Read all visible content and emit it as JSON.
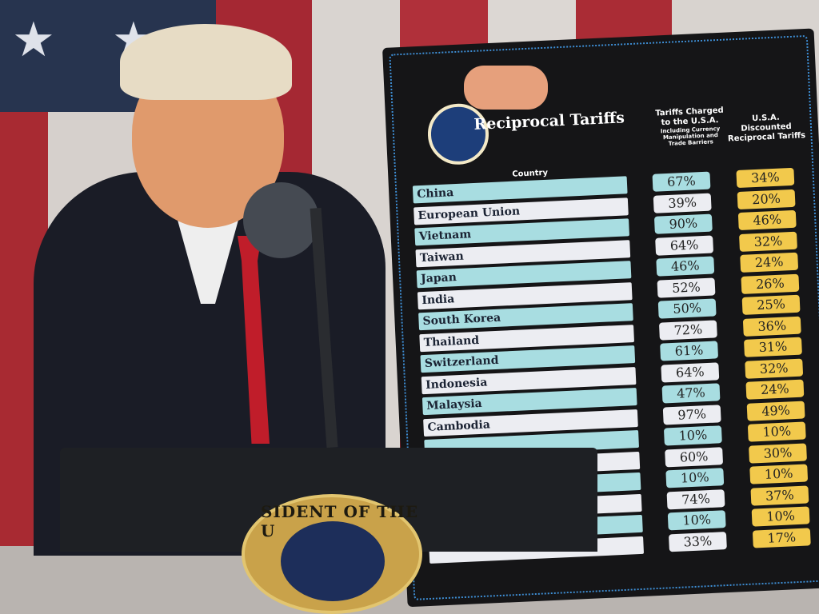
{
  "board": {
    "title": "Reciprocal Tariffs",
    "seal_text": "SEAL OF THE PRESIDENT OF THE UNITED STATES",
    "column_country": "Country",
    "column_charged": "Tariffs Charged to the U.S.A.",
    "column_charged_note": "Including Currency Manipulation and Trade Barriers",
    "column_discounted": "U.S.A. Discounted Reciprocal Tariffs",
    "colors": {
      "board": "#151517",
      "blue_row": "#a8dde1",
      "white_row": "#ecedf2",
      "discount": "#f2c94c",
      "border": "#3e8fd6"
    },
    "rows": [
      {
        "country": "China",
        "charged": "67%",
        "discounted": "34%"
      },
      {
        "country": "European Union",
        "charged": "39%",
        "discounted": "20%"
      },
      {
        "country": "Vietnam",
        "charged": "90%",
        "discounted": "46%"
      },
      {
        "country": "Taiwan",
        "charged": "64%",
        "discounted": "32%"
      },
      {
        "country": "Japan",
        "charged": "46%",
        "discounted": "24%"
      },
      {
        "country": "India",
        "charged": "52%",
        "discounted": "26%"
      },
      {
        "country": "South Korea",
        "charged": "50%",
        "discounted": "25%"
      },
      {
        "country": "Thailand",
        "charged": "72%",
        "discounted": "36%"
      },
      {
        "country": "Switzerland",
        "charged": "61%",
        "discounted": "31%"
      },
      {
        "country": "Indonesia",
        "charged": "64%",
        "discounted": "32%"
      },
      {
        "country": "Malaysia",
        "charged": "47%",
        "discounted": "24%"
      },
      {
        "country": "Cambodia",
        "charged": "97%",
        "discounted": "49%"
      },
      {
        "country": "",
        "charged": "10%",
        "discounted": "10%"
      },
      {
        "country": "",
        "charged": "60%",
        "discounted": "30%"
      },
      {
        "country": "",
        "charged": "10%",
        "discounted": "10%"
      },
      {
        "country": "",
        "charged": "74%",
        "discounted": "37%"
      },
      {
        "country": "",
        "charged": "10%",
        "discounted": "10%"
      },
      {
        "country": "",
        "charged": "33%",
        "discounted": "17%"
      }
    ]
  },
  "podium": {
    "seal_text": "SIDENT OF THE U"
  }
}
